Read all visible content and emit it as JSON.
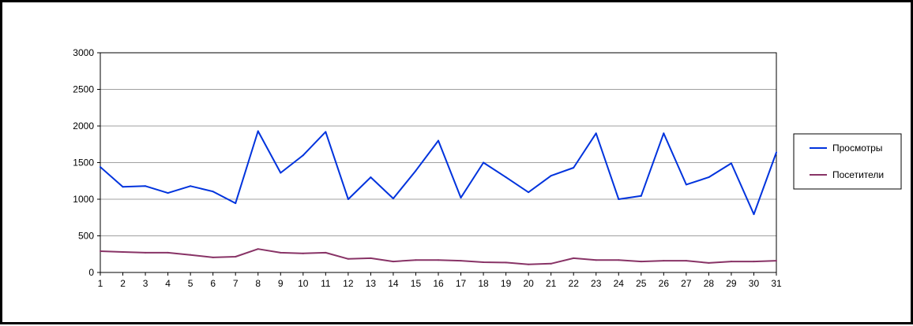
{
  "chart_data": {
    "type": "line",
    "title": "",
    "xlabel": "",
    "ylabel": "",
    "x": [
      1,
      2,
      3,
      4,
      5,
      6,
      7,
      8,
      9,
      10,
      11,
      12,
      13,
      14,
      15,
      16,
      17,
      18,
      19,
      20,
      21,
      22,
      23,
      24,
      25,
      26,
      27,
      28,
      29,
      30,
      31
    ],
    "ylim": [
      0,
      3000
    ],
    "yticks": [
      0,
      500,
      1000,
      1500,
      2000,
      2500,
      3000
    ],
    "grid": true,
    "legend_position": "right",
    "series": [
      {
        "name": "Просмотры",
        "color": "#0033dd",
        "values": [
          1440,
          1170,
          1180,
          1085,
          1180,
          1105,
          945,
          1930,
          1360,
          1600,
          1920,
          1000,
          1300,
          1010,
          1390,
          1800,
          1020,
          1500,
          1300,
          1095,
          1320,
          1430,
          1900,
          1000,
          1045,
          1900,
          1200,
          1300,
          1490,
          795,
          1640
        ]
      },
      {
        "name": "Посетители",
        "color": "#883366",
        "values": [
          290,
          280,
          270,
          270,
          240,
          205,
          215,
          320,
          270,
          260,
          270,
          185,
          195,
          150,
          170,
          170,
          160,
          140,
          135,
          110,
          120,
          195,
          170,
          170,
          150,
          160,
          160,
          130,
          150,
          150,
          160
        ]
      }
    ]
  }
}
